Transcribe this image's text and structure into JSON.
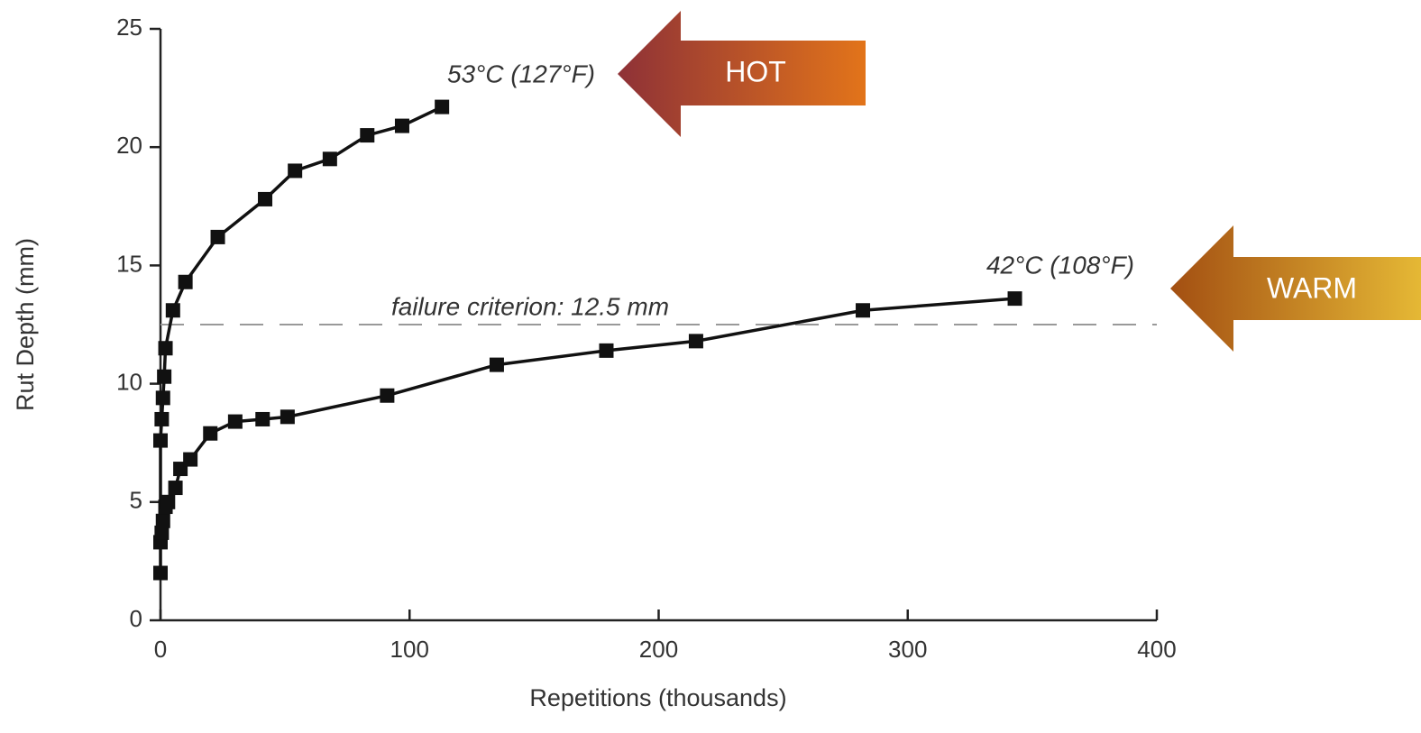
{
  "chart_data": {
    "type": "line",
    "x_label": "Repetitions (thousands)",
    "y_label": "Rut Depth (mm)",
    "xlim": [
      0,
      400
    ],
    "xticks": [
      0,
      100,
      200,
      300,
      400
    ],
    "ylim": [
      0,
      25
    ],
    "yticks": [
      0,
      5,
      10,
      15,
      20,
      25
    ],
    "series": [
      {
        "name": "53°C (127°F)",
        "color": "#111111",
        "x": [
          0,
          0,
          0.5,
          1,
          1.5,
          2,
          5,
          10,
          23,
          42,
          54,
          68,
          83,
          97,
          113
        ],
        "values": [
          2,
          7.6,
          8.5,
          9.4,
          10.3,
          11.5,
          13.1,
          14.3,
          16.2,
          17.8,
          19.0,
          19.5,
          20.5,
          20.9,
          21.7
        ]
      },
      {
        "name": "42°C (108°F)",
        "color": "#111111",
        "x": [
          0,
          0.5,
          1,
          2,
          3,
          6,
          8,
          12,
          20,
          30,
          41,
          51,
          91,
          135,
          179,
          215,
          282,
          343
        ],
        "values": [
          3.3,
          3.7,
          4.2,
          4.8,
          5.0,
          5.6,
          6.4,
          6.8,
          7.9,
          8.4,
          8.5,
          8.6,
          9.5,
          10.8,
          11.4,
          11.8,
          13.1,
          13.6
        ]
      }
    ],
    "threshold": {
      "value": 12.5,
      "label": "failure criterion: 12.5 mm",
      "color": "#999999"
    },
    "annotations": [
      {
        "text": "HOT",
        "colors": [
          "#8e3137",
          "#e2741a"
        ]
      },
      {
        "text": "WARM",
        "colors": [
          "#a34f12",
          "#e5b835"
        ]
      }
    ]
  }
}
